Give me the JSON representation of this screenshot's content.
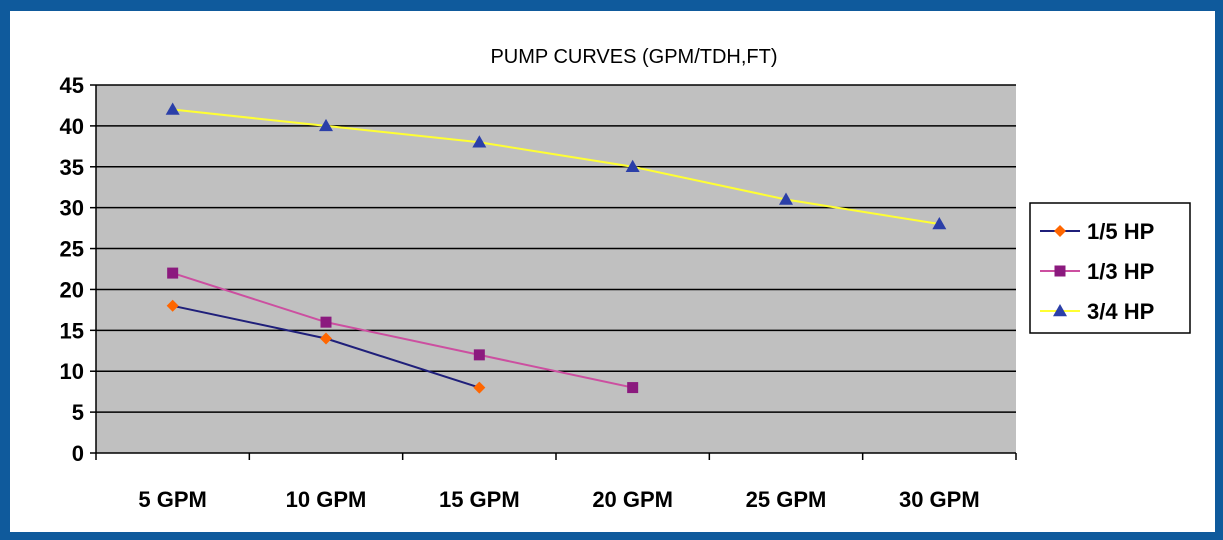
{
  "chart_data": {
    "type": "line",
    "title": "PUMP CURVES (GPM/TDH,FT)",
    "xlabel": "",
    "ylabel": "",
    "categories": [
      "5 GPM",
      "10 GPM",
      "15 GPM",
      "20 GPM",
      "25 GPM",
      "30 GPM"
    ],
    "ylim": [
      0,
      45
    ],
    "yticks": [
      0,
      5,
      10,
      15,
      20,
      25,
      30,
      35,
      40,
      45
    ],
    "grid": true,
    "legend_position": "right",
    "plot_background": "#c0c0c0",
    "frame_color": "#0f5a9c",
    "series": [
      {
        "name": "1/5 HP",
        "values": [
          18,
          14,
          8,
          null,
          null,
          null
        ],
        "line_color": "#1f1f7a",
        "marker_color": "#ff6600",
        "marker": "diamond"
      },
      {
        "name": "1/3 HP",
        "values": [
          22,
          16,
          12,
          8,
          null,
          null
        ],
        "line_color": "#cc4fa0",
        "marker_color": "#8b1a7e",
        "marker": "square"
      },
      {
        "name": "3/4 HP",
        "values": [
          42,
          40,
          38,
          35,
          31,
          28
        ],
        "line_color": "#ffff33",
        "marker_color": "#2b3fa8",
        "marker": "triangle"
      }
    ]
  }
}
